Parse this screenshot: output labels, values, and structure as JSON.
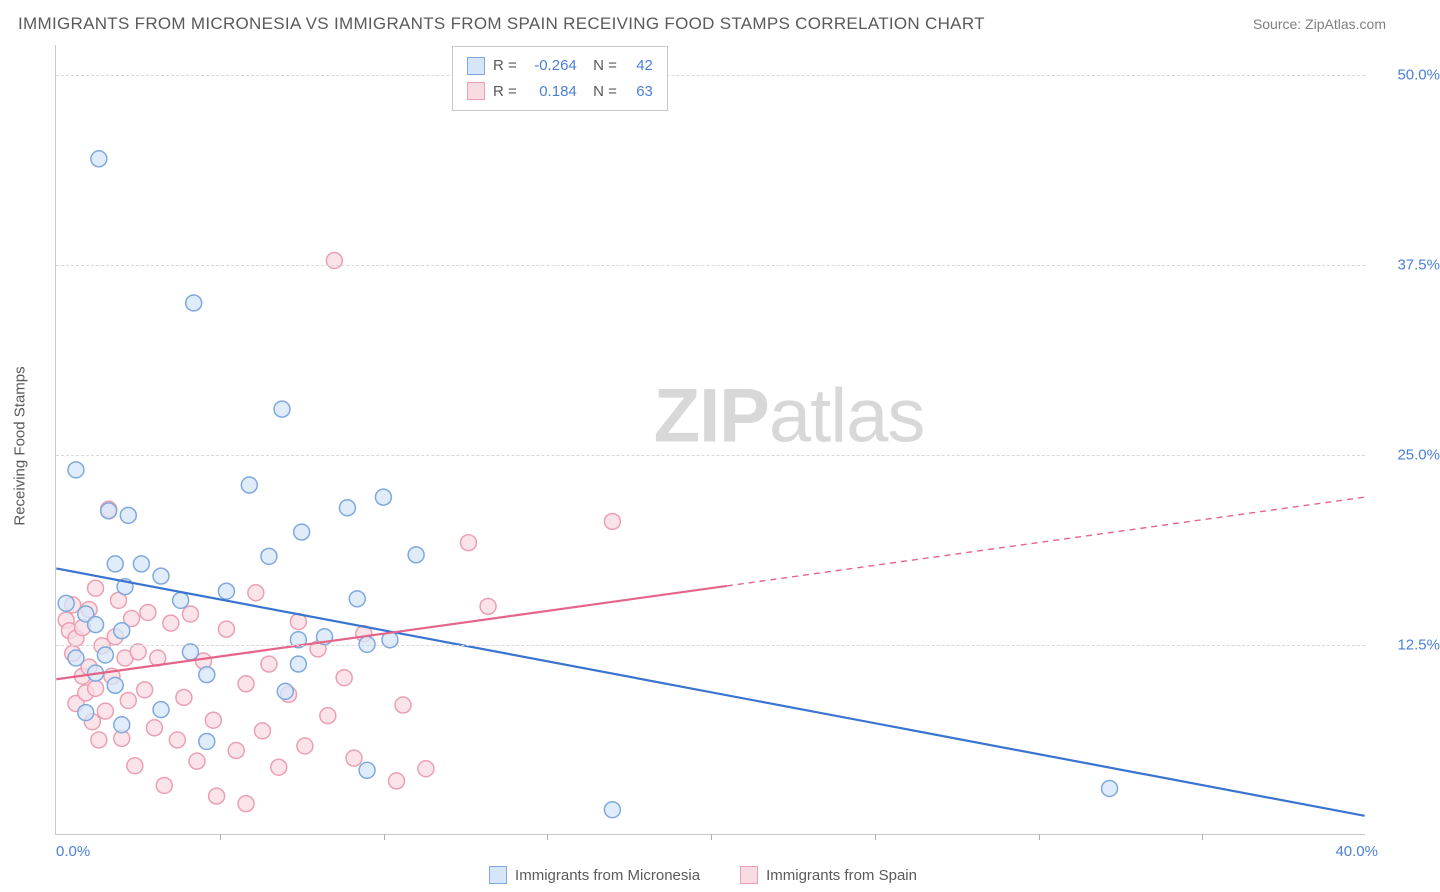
{
  "title": "IMMIGRANTS FROM MICRONESIA VS IMMIGRANTS FROM SPAIN RECEIVING FOOD STAMPS CORRELATION CHART",
  "source_prefix": "Source: ",
  "source_link": "ZipAtlas.com",
  "y_axis_label": "Receiving Food Stamps",
  "watermark_bold": "ZIP",
  "watermark_rest": "atlas",
  "chart": {
    "type": "scatter-with-regression",
    "xlim": [
      0,
      40
    ],
    "ylim": [
      0,
      52
    ],
    "x_start_label": "0.0%",
    "x_end_label": "40.0%",
    "y_ticks": [
      {
        "pos": 12.5,
        "label": "12.5%"
      },
      {
        "pos": 25.0,
        "label": "25.0%"
      },
      {
        "pos": 37.5,
        "label": "37.5%"
      },
      {
        "pos": 50.0,
        "label": "50.0%"
      }
    ],
    "x_tick_positions": [
      5,
      10,
      15,
      20,
      25,
      30,
      35
    ],
    "background_color": "#ffffff",
    "grid_color": "#d8d8d8",
    "axis_color": "#c8c8c8",
    "tick_label_color": "#4a7fd8",
    "marker_radius": 8,
    "marker_stroke_width": 1.5,
    "line_width": 2.2,
    "series": [
      {
        "name": "Immigrants from Micronesia",
        "fill": "#d6e5f7",
        "stroke": "#7ea9df",
        "line_color": "#3a74d0",
        "R": "-0.264",
        "N": "42",
        "regression": {
          "x1": 0,
          "y1": 17.5,
          "x2": 40,
          "y2": 1.2,
          "solid_end_x": 40
        },
        "points": [
          [
            1.3,
            44.5
          ],
          [
            4.2,
            35.0
          ],
          [
            0.6,
            24.0
          ],
          [
            1.6,
            21.3
          ],
          [
            2.2,
            21.0
          ],
          [
            1.8,
            17.8
          ],
          [
            2.6,
            17.8
          ],
          [
            2.1,
            16.3
          ],
          [
            0.3,
            15.2
          ],
          [
            0.9,
            14.5
          ],
          [
            1.2,
            13.8
          ],
          [
            2.0,
            13.4
          ],
          [
            3.2,
            17.0
          ],
          [
            3.8,
            15.4
          ],
          [
            4.1,
            12.0
          ],
          [
            4.6,
            10.5
          ],
          [
            1.5,
            11.8
          ],
          [
            0.6,
            11.6
          ],
          [
            1.2,
            10.6
          ],
          [
            1.8,
            9.8
          ],
          [
            2.0,
            7.2
          ],
          [
            3.2,
            8.2
          ],
          [
            4.6,
            6.1
          ],
          [
            5.2,
            16.0
          ],
          [
            5.9,
            23.0
          ],
          [
            6.5,
            18.3
          ],
          [
            6.9,
            28.0
          ],
          [
            7.5,
            19.9
          ],
          [
            7.4,
            12.8
          ],
          [
            7.4,
            11.2
          ],
          [
            7.0,
            9.4
          ],
          [
            8.2,
            13.0
          ],
          [
            8.9,
            21.5
          ],
          [
            9.2,
            15.5
          ],
          [
            9.5,
            12.5
          ],
          [
            9.5,
            4.2
          ],
          [
            10.0,
            22.2
          ],
          [
            10.2,
            12.8
          ],
          [
            11.0,
            18.4
          ],
          [
            17.0,
            1.6
          ],
          [
            32.2,
            3.0
          ],
          [
            0.9,
            8.0
          ]
        ]
      },
      {
        "name": "Immigrants from Spain",
        "fill": "#f9dbe2",
        "stroke": "#eaa0b2",
        "line_color": "#e5648a",
        "R": "0.184",
        "N": "63",
        "regression": {
          "x1": 0,
          "y1": 10.2,
          "x2": 40,
          "y2": 22.2,
          "solid_end_x": 20.5
        },
        "points": [
          [
            0.3,
            14.1
          ],
          [
            0.4,
            13.4
          ],
          [
            0.5,
            15.1
          ],
          [
            0.5,
            11.9
          ],
          [
            0.6,
            8.6
          ],
          [
            0.6,
            12.9
          ],
          [
            0.8,
            13.6
          ],
          [
            0.8,
            10.4
          ],
          [
            0.9,
            9.3
          ],
          [
            1.0,
            11.0
          ],
          [
            1.0,
            14.8
          ],
          [
            1.1,
            7.4
          ],
          [
            1.2,
            16.2
          ],
          [
            1.2,
            9.6
          ],
          [
            1.3,
            6.2
          ],
          [
            1.4,
            12.4
          ],
          [
            1.5,
            8.1
          ],
          [
            1.6,
            21.4
          ],
          [
            1.7,
            10.4
          ],
          [
            1.8,
            13.0
          ],
          [
            1.9,
            15.4
          ],
          [
            2.0,
            6.3
          ],
          [
            2.1,
            11.6
          ],
          [
            2.2,
            8.8
          ],
          [
            2.3,
            14.2
          ],
          [
            2.4,
            4.5
          ],
          [
            2.5,
            12.0
          ],
          [
            2.7,
            9.5
          ],
          [
            2.8,
            14.6
          ],
          [
            3.0,
            7.0
          ],
          [
            3.1,
            11.6
          ],
          [
            3.3,
            3.2
          ],
          [
            3.5,
            13.9
          ],
          [
            3.7,
            6.2
          ],
          [
            3.9,
            9.0
          ],
          [
            4.1,
            14.5
          ],
          [
            4.3,
            4.8
          ],
          [
            4.5,
            11.4
          ],
          [
            4.8,
            7.5
          ],
          [
            4.9,
            2.5
          ],
          [
            5.2,
            13.5
          ],
          [
            5.5,
            5.5
          ],
          [
            5.8,
            9.9
          ],
          [
            5.8,
            2.0
          ],
          [
            6.1,
            15.9
          ],
          [
            6.3,
            6.8
          ],
          [
            6.5,
            11.2
          ],
          [
            6.8,
            4.4
          ],
          [
            7.1,
            9.2
          ],
          [
            7.4,
            14.0
          ],
          [
            7.6,
            5.8
          ],
          [
            8.0,
            12.2
          ],
          [
            8.3,
            7.8
          ],
          [
            8.5,
            37.8
          ],
          [
            8.8,
            10.3
          ],
          [
            9.1,
            5.0
          ],
          [
            9.4,
            13.2
          ],
          [
            10.4,
            3.5
          ],
          [
            10.6,
            8.5
          ],
          [
            11.3,
            4.3
          ],
          [
            12.6,
            19.2
          ],
          [
            13.2,
            15.0
          ],
          [
            17.0,
            20.6
          ]
        ]
      }
    ]
  },
  "legend_bottom": [
    {
      "swatch_fill": "#d6e5f7",
      "swatch_stroke": "#7ea9df",
      "label": "Immigrants from Micronesia"
    },
    {
      "swatch_fill": "#f9dbe2",
      "swatch_stroke": "#eaa0b2",
      "label": "Immigrants from Spain"
    }
  ]
}
